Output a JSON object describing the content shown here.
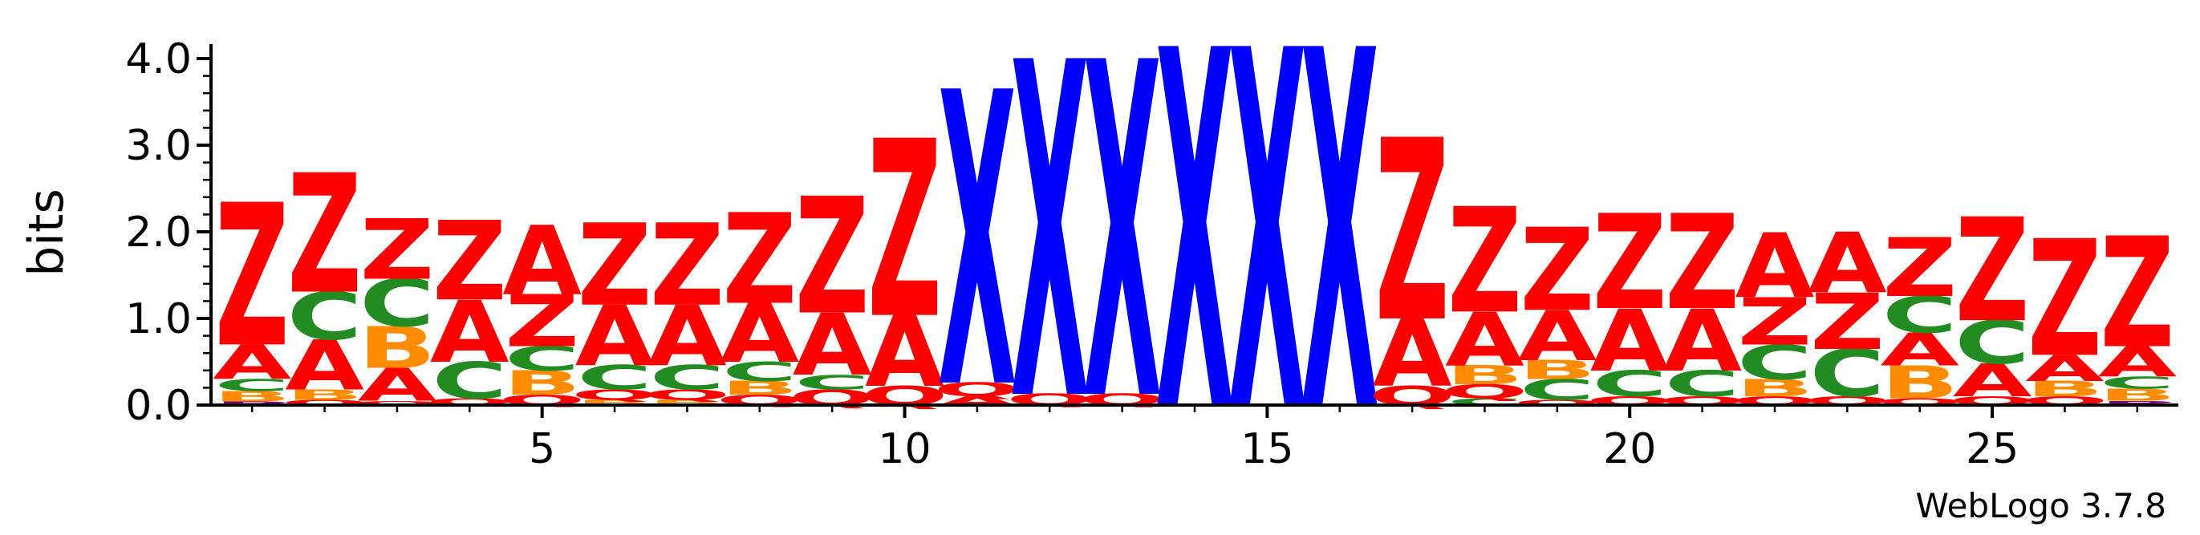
{
  "chart_data": {
    "type": "sequence_logo",
    "title": "",
    "xlabel": "",
    "ylabel": "bits",
    "ylim": [
      0,
      4.0
    ],
    "y_ticks": [
      "0.0",
      "1.0",
      "2.0",
      "3.0",
      "4.0"
    ],
    "x_ticks": [
      5,
      10,
      15,
      20,
      25
    ],
    "positions": [
      1,
      2,
      3,
      4,
      5,
      6,
      7,
      8,
      9,
      10,
      11,
      12,
      13,
      14,
      15,
      16,
      17,
      18,
      19,
      20,
      21,
      22,
      23,
      24,
      25,
      26,
      27
    ],
    "colors": {
      "Z": "#ff0000",
      "A": "#ff0000",
      "Q": "#ff0000",
      "X": "#0000ff",
      "C": "#228b22",
      "B": "#ff8c00",
      "P": "#800080"
    },
    "stacks": [
      [
        [
          "P",
          0.04
        ],
        [
          "B",
          0.12
        ],
        [
          "C",
          0.14
        ],
        [
          "A",
          0.4
        ],
        [
          "Z",
          1.65
        ]
      ],
      [
        [
          "Q",
          0.06
        ],
        [
          "B",
          0.12
        ],
        [
          "A",
          0.58
        ],
        [
          "C",
          0.55
        ],
        [
          "Z",
          1.38
        ]
      ],
      [
        [
          "Q",
          0.05
        ],
        [
          "A",
          0.38
        ],
        [
          "B",
          0.48
        ],
        [
          "C",
          0.55
        ],
        [
          "Z",
          0.7
        ]
      ],
      [
        [
          "Q",
          0.08
        ],
        [
          "C",
          0.42
        ],
        [
          "A",
          0.72
        ],
        [
          "Z",
          0.92
        ]
      ],
      [
        [
          "Q",
          0.12
        ],
        [
          "B",
          0.28
        ],
        [
          "C",
          0.28
        ],
        [
          "Z",
          0.6
        ],
        [
          "A",
          0.8
        ]
      ],
      [
        [
          "B",
          0.06
        ],
        [
          "Q",
          0.12
        ],
        [
          "C",
          0.28
        ],
        [
          "A",
          0.7
        ],
        [
          "Z",
          0.95
        ]
      ],
      [
        [
          "B",
          0.06
        ],
        [
          "Q",
          0.12
        ],
        [
          "C",
          0.28
        ],
        [
          "A",
          0.7
        ],
        [
          "Z",
          0.95
        ]
      ],
      [
        [
          "Q",
          0.12
        ],
        [
          "B",
          0.16
        ],
        [
          "C",
          0.22
        ],
        [
          "A",
          0.68
        ],
        [
          "Z",
          1.05
        ]
      ],
      [
        [
          "Q",
          0.18
        ],
        [
          "C",
          0.17
        ],
        [
          "A",
          0.72
        ],
        [
          "Z",
          1.35
        ]
      ],
      [
        [
          "Q",
          0.22
        ],
        [
          "A",
          0.82
        ],
        [
          "Z",
          2.05
        ]
      ],
      [
        [
          "A",
          0.1
        ],
        [
          "Q",
          0.16
        ],
        [
          "X",
          3.4
        ]
      ],
      [
        [
          "Q",
          0.13
        ],
        [
          "X",
          3.88
        ]
      ],
      [
        [
          "Q",
          0.13
        ],
        [
          "X",
          3.88
        ]
      ],
      [
        [
          "X",
          4.15
        ]
      ],
      [
        [
          "X",
          4.15
        ]
      ],
      [
        [
          "X",
          4.15
        ]
      ],
      [
        [
          "Q",
          0.22
        ],
        [
          "A",
          0.78
        ],
        [
          "Z",
          2.1
        ]
      ],
      [
        [
          "C",
          0.08
        ],
        [
          "Q",
          0.16
        ],
        [
          "B",
          0.22
        ],
        [
          "A",
          0.62
        ],
        [
          "Z",
          1.22
        ]
      ],
      [
        [
          "Q",
          0.06
        ],
        [
          "C",
          0.24
        ],
        [
          "B",
          0.22
        ],
        [
          "A",
          0.58
        ],
        [
          "Z",
          0.96
        ]
      ],
      [
        [
          "Q",
          0.1
        ],
        [
          "C",
          0.3
        ],
        [
          "A",
          0.72
        ],
        [
          "Z",
          1.1
        ]
      ],
      [
        [
          "Q",
          0.1
        ],
        [
          "C",
          0.3
        ],
        [
          "A",
          0.72
        ],
        [
          "Z",
          1.1
        ]
      ],
      [
        [
          "Q",
          0.1
        ],
        [
          "B",
          0.2
        ],
        [
          "C",
          0.4
        ],
        [
          "Z",
          0.55
        ],
        [
          "A",
          0.75
        ]
      ],
      [
        [
          "Q",
          0.1
        ],
        [
          "C",
          0.55
        ],
        [
          "Z",
          0.65
        ],
        [
          "A",
          0.7
        ]
      ],
      [
        [
          "Q",
          0.08
        ],
        [
          "B",
          0.38
        ],
        [
          "A",
          0.38
        ],
        [
          "C",
          0.42
        ],
        [
          "Z",
          0.68
        ]
      ],
      [
        [
          "Q",
          0.1
        ],
        [
          "A",
          0.38
        ],
        [
          "C",
          0.5
        ],
        [
          "Z",
          1.2
        ]
      ],
      [
        [
          "Q",
          0.1
        ],
        [
          "B",
          0.18
        ],
        [
          "A",
          0.3
        ],
        [
          "Z",
          1.35
        ]
      ],
      [
        [
          "P",
          0.05
        ],
        [
          "B",
          0.14
        ],
        [
          "C",
          0.14
        ],
        [
          "A",
          0.35
        ],
        [
          "Z",
          1.28
        ]
      ]
    ]
  },
  "footer": {
    "credit": "WebLogo 3.7.8"
  }
}
